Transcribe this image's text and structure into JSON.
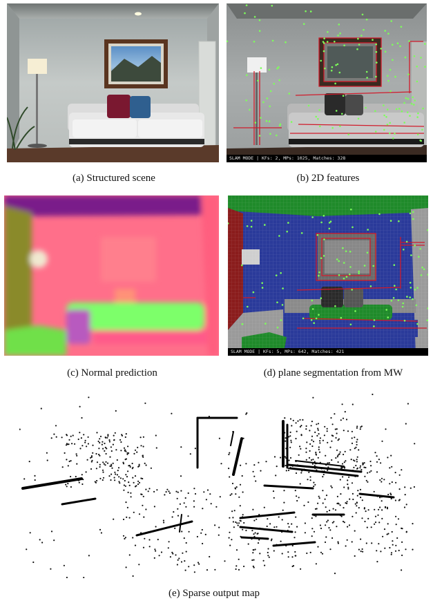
{
  "figure": {
    "panels": [
      {
        "id": "a",
        "caption": "(a) Structured scene"
      },
      {
        "id": "b",
        "caption": "(b) 2D features",
        "hud_text": "SLAM MODE |  KFs: 2, MPs: 1025, Matches: 328"
      },
      {
        "id": "c",
        "caption": "(c) Normal prediction"
      },
      {
        "id": "d",
        "caption": "(d) plane segmentation from MW",
        "hud_text": "SLAM MODE |  KFs: 5, MPs: 642, Matches: 421"
      },
      {
        "id": "e",
        "caption": "(e) Sparse output map"
      }
    ],
    "colors": {
      "feature_point": "#7dff5a",
      "line_feature": "#d01b2b",
      "plane_blue": "#2a3a9a",
      "plane_green": "#1f8a2a",
      "plane_red": "#8a1c1c",
      "normal_pink": "#ff6f8a",
      "normal_green": "#7dff6a",
      "normal_purple": "#7a1d8a"
    }
  }
}
